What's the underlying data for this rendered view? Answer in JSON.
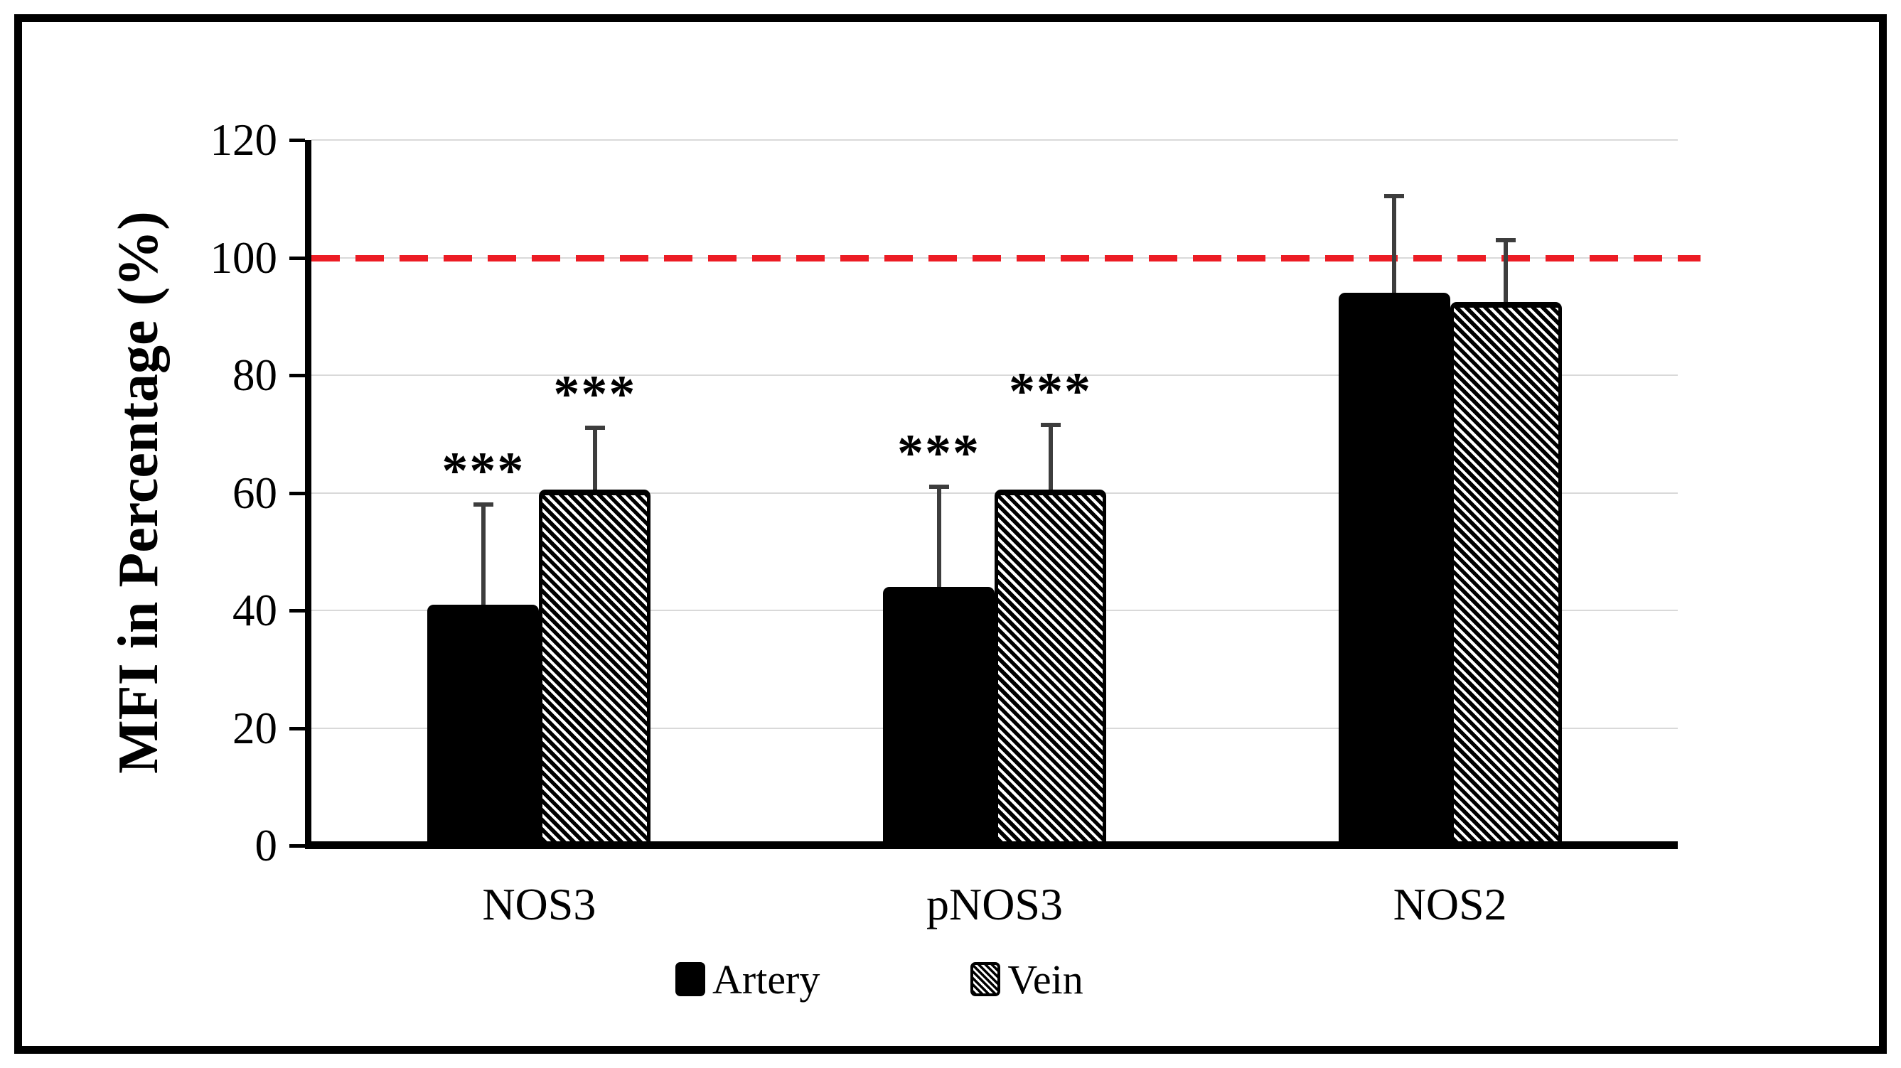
{
  "chart_data": {
    "type": "bar",
    "title": "",
    "ylabel": "MFI in Percentage (%)",
    "xlabel": "",
    "ylim": [
      0,
      120
    ],
    "yticks": [
      0,
      20,
      40,
      60,
      80,
      100,
      120
    ],
    "grid": "horizontal",
    "gridline_color": "#D9D9D9",
    "axis_color": "#000000",
    "background_color": "#FFFFFF",
    "categories": [
      "NOS3",
      "pNOS3",
      "NOS2"
    ],
    "series": [
      {
        "name": "Artery",
        "style": "solid-black",
        "color": "#000000",
        "values": [
          41,
          44,
          94
        ],
        "error_up": [
          17,
          17,
          16.5
        ],
        "significance": [
          "***",
          "***",
          ""
        ]
      },
      {
        "name": "Vein",
        "style": "diagonal-hatch",
        "color": "#000000",
        "values": [
          60.5,
          60.5,
          92.5
        ],
        "error_up": [
          10.5,
          11,
          10.5
        ],
        "significance": [
          "***",
          "***",
          ""
        ]
      }
    ],
    "reference_line": {
      "value": 100,
      "style": "dashed",
      "color": "#EC1C24"
    },
    "error_bar_color": "#3D3D3D",
    "legend_position": "bottom",
    "legend": [
      "Artery",
      "Vein"
    ]
  }
}
